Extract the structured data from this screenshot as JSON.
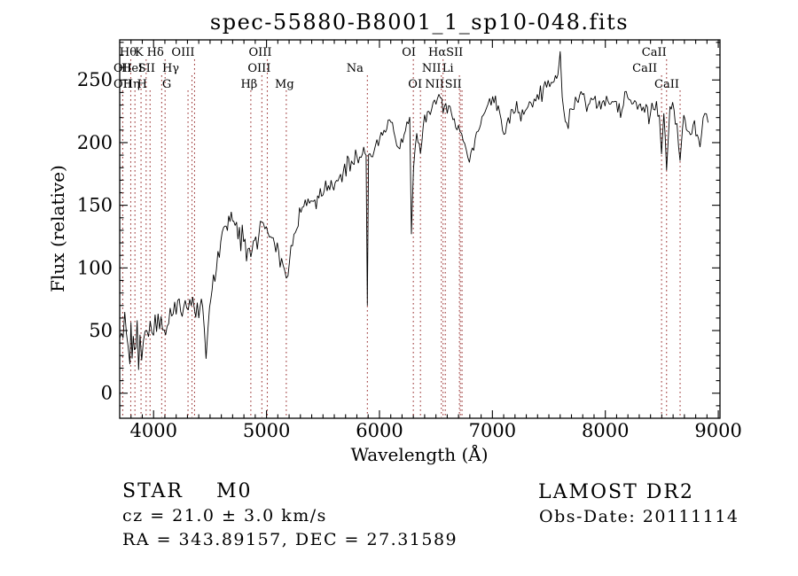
{
  "chart_data": {
    "type": "line",
    "title": "spec-55880-B8001_1_sp10-048.fits",
    "xlabel": "Wavelength (Å)",
    "ylabel": "Flux (relative)",
    "xlim": [
      3700,
      9015
    ],
    "ylim": [
      -20,
      282
    ],
    "xticks": [
      4000,
      5000,
      6000,
      7000,
      8000,
      9000
    ],
    "yticks": [
      0,
      50,
      100,
      150,
      200,
      250
    ],
    "x_minor_step": 100,
    "y_minor_step": 10,
    "grid": false,
    "legend": "none",
    "trace_color": "#000000",
    "feature_line_color": "#9e3a3a",
    "feature_labels": [
      {
        "text": "Hθ",
        "wavelength": 3798,
        "row": 1,
        "dx": -3
      },
      {
        "text": "K",
        "wavelength": 3934,
        "row": 1,
        "dx": -8
      },
      {
        "text": "Hδ",
        "wavelength": 4102,
        "row": 1,
        "dx": -11
      },
      {
        "text": "OIII",
        "wavelength": 4363,
        "row": 1,
        "dx": -13
      },
      {
        "text": "OIII",
        "wavelength": 5007,
        "row": 1,
        "dx": -8
      },
      {
        "text": "OI",
        "wavelength": 6300,
        "row": 1,
        "dx": -5
      },
      {
        "text": "HαSII",
        "wavelength": 6610,
        "row": 1,
        "dx": -3
      },
      {
        "text": "CaII",
        "wavelength": 8542,
        "row": 1,
        "dx": -14
      },
      {
        "text": "OII",
        "wavelength": 3727,
        "row": 2,
        "dx": 0
      },
      {
        "text": "HeI",
        "wavelength": 3889,
        "row": 2,
        "dx": -10
      },
      {
        "text": "SII",
        "wavelength": 4072,
        "row": 2,
        "dx": -17
      },
      {
        "text": "Hγ",
        "wavelength": 4340,
        "row": 2,
        "dx": -24
      },
      {
        "text": "OIII",
        "wavelength": 4959,
        "row": 2,
        "dx": -3
      },
      {
        "text": "Na",
        "wavelength": 5893,
        "row": 2,
        "dx": -14
      },
      {
        "text": "NII",
        "wavelength": 6548,
        "row": 2,
        "dx": -11
      },
      {
        "text": "Li",
        "wavelength": 6708,
        "row": 2,
        "dx": -13
      },
      {
        "text": "CaII",
        "wavelength": 8498,
        "row": 2,
        "dx": -19
      },
      {
        "text": "OII",
        "wavelength": 3727,
        "row": 3,
        "dx": 0
      },
      {
        "text": "Hη",
        "wavelength": 3835,
        "row": 3,
        "dx": -4
      },
      {
        "text": "H",
        "wavelength": 3969,
        "row": 3,
        "dx": -9
      },
      {
        "text": "G",
        "wavelength": 4305,
        "row": 3,
        "dx": -24
      },
      {
        "text": "Hβ",
        "wavelength": 4861,
        "row": 3,
        "dx": -2
      },
      {
        "text": "Mg",
        "wavelength": 5175,
        "row": 3,
        "dx": -2
      },
      {
        "text": "OI",
        "wavelength": 6363,
        "row": 3,
        "dx": -6
      },
      {
        "text": "NII",
        "wavelength": 6583,
        "row": 3,
        "dx": -12
      },
      {
        "text": "SII",
        "wavelength": 6716,
        "row": 3,
        "dx": -8
      },
      {
        "text": "CaII",
        "wavelength": 8662,
        "row": 3,
        "dx": -15
      }
    ],
    "feature_lines": [
      [
        3727,
        3
      ],
      [
        3798,
        1
      ],
      [
        3835,
        3
      ],
      [
        3889,
        2
      ],
      [
        3934,
        1
      ],
      [
        3969,
        3
      ],
      [
        4072,
        2
      ],
      [
        4102,
        1
      ],
      [
        4305,
        3
      ],
      [
        4340,
        2
      ],
      [
        4363,
        1
      ],
      [
        4861,
        3
      ],
      [
        4959,
        2
      ],
      [
        5007,
        1
      ],
      [
        5175,
        3
      ],
      [
        5893,
        2
      ],
      [
        6300,
        1
      ],
      [
        6363,
        3
      ],
      [
        6548,
        2
      ],
      [
        6563,
        1
      ],
      [
        6583,
        3
      ],
      [
        6708,
        2
      ],
      [
        6716,
        3
      ],
      [
        6731,
        3
      ],
      [
        8498,
        2
      ],
      [
        8542,
        1
      ],
      [
        8662,
        3
      ]
    ],
    "spectrum_anchors": [
      [
        3700,
        25,
        34
      ],
      [
        3715,
        45,
        34
      ],
      [
        3730,
        15,
        32
      ],
      [
        3745,
        40,
        30
      ],
      [
        3760,
        30,
        28
      ],
      [
        3775,
        42,
        26
      ],
      [
        3790,
        35,
        24
      ],
      [
        3810,
        42,
        22
      ],
      [
        3830,
        32,
        20
      ],
      [
        3855,
        38,
        18
      ],
      [
        3880,
        40,
        17
      ],
      [
        3910,
        44,
        16
      ],
      [
        3940,
        47,
        15
      ],
      [
        3970,
        50,
        14
      ],
      [
        4000,
        53,
        14
      ],
      [
        4040,
        56,
        13
      ],
      [
        4080,
        58,
        13
      ],
      [
        4120,
        61,
        12
      ],
      [
        4160,
        64,
        12
      ],
      [
        4200,
        68,
        12
      ],
      [
        4240,
        72,
        11
      ],
      [
        4280,
        70,
        11
      ],
      [
        4320,
        69,
        11
      ],
      [
        4360,
        73,
        10
      ],
      [
        4400,
        70,
        11
      ],
      [
        4435,
        66,
        11
      ],
      [
        4465,
        32,
        7
      ],
      [
        4495,
        68,
        10
      ],
      [
        4530,
        88,
        10
      ],
      [
        4570,
        110,
        10
      ],
      [
        4620,
        131,
        9
      ],
      [
        4665,
        142,
        9
      ],
      [
        4710,
        139,
        9
      ],
      [
        4760,
        129,
        9
      ],
      [
        4810,
        121,
        9
      ],
      [
        4861,
        113,
        8
      ],
      [
        4905,
        124,
        8
      ],
      [
        4945,
        131,
        8
      ],
      [
        4985,
        133,
        8
      ],
      [
        5025,
        128,
        8
      ],
      [
        5070,
        120,
        8
      ],
      [
        5120,
        110,
        7
      ],
      [
        5160,
        100,
        7
      ],
      [
        5190,
        96,
        6
      ],
      [
        5230,
        118,
        8
      ],
      [
        5280,
        139,
        8
      ],
      [
        5330,
        151,
        8
      ],
      [
        5380,
        156,
        9
      ],
      [
        5440,
        152,
        9
      ],
      [
        5500,
        160,
        9
      ],
      [
        5560,
        167,
        8
      ],
      [
        5620,
        171,
        8
      ],
      [
        5680,
        178,
        8
      ],
      [
        5740,
        184,
        8
      ],
      [
        5800,
        188,
        7
      ],
      [
        5850,
        191,
        6
      ],
      [
        5882,
        193,
        4
      ],
      [
        5893,
        72,
        3
      ],
      [
        5904,
        191,
        4
      ],
      [
        5940,
        194,
        7
      ],
      [
        5990,
        200,
        7
      ],
      [
        6040,
        208,
        7
      ],
      [
        6090,
        218,
        7
      ],
      [
        6140,
        206,
        7
      ],
      [
        6180,
        196,
        6
      ],
      [
        6230,
        211,
        6
      ],
      [
        6268,
        218,
        4
      ],
      [
        6283,
        128,
        4
      ],
      [
        6302,
        183,
        5
      ],
      [
        6330,
        209,
        5
      ],
      [
        6363,
        192,
        4
      ],
      [
        6400,
        220,
        5
      ],
      [
        6450,
        227,
        6
      ],
      [
        6500,
        234,
        6
      ],
      [
        6540,
        239,
        5
      ],
      [
        6563,
        223,
        4
      ],
      [
        6600,
        231,
        6
      ],
      [
        6650,
        221,
        6
      ],
      [
        6700,
        208,
        6
      ],
      [
        6755,
        197,
        6
      ],
      [
        6810,
        193,
        6
      ],
      [
        6860,
        207,
        6
      ],
      [
        6920,
        221,
        6
      ],
      [
        6975,
        232,
        6
      ],
      [
        7015,
        236,
        6
      ],
      [
        7065,
        220,
        6
      ],
      [
        7115,
        213,
        6
      ],
      [
        7165,
        224,
        6
      ],
      [
        7215,
        230,
        7
      ],
      [
        7265,
        226,
        7
      ],
      [
        7315,
        230,
        7
      ],
      [
        7370,
        235,
        7
      ],
      [
        7425,
        241,
        7
      ],
      [
        7480,
        246,
        6
      ],
      [
        7535,
        249,
        5
      ],
      [
        7580,
        254,
        4
      ],
      [
        7600,
        272,
        2
      ],
      [
        7618,
        237,
        3
      ],
      [
        7645,
        216,
        5
      ],
      [
        7685,
        222,
        6
      ],
      [
        7735,
        234,
        7
      ],
      [
        7785,
        238,
        7
      ],
      [
        7835,
        230,
        7
      ],
      [
        7885,
        237,
        7
      ],
      [
        7935,
        229,
        7
      ],
      [
        7985,
        236,
        7
      ],
      [
        8035,
        230,
        7
      ],
      [
        8085,
        235,
        7
      ],
      [
        8135,
        227,
        8
      ],
      [
        8185,
        237,
        8
      ],
      [
        8235,
        231,
        8
      ],
      [
        8285,
        234,
        8
      ],
      [
        8335,
        229,
        8
      ],
      [
        8385,
        228,
        8
      ],
      [
        8440,
        231,
        7
      ],
      [
        8478,
        223,
        5
      ],
      [
        8498,
        189,
        3
      ],
      [
        8518,
        227,
        4
      ],
      [
        8542,
        178,
        3
      ],
      [
        8572,
        231,
        5
      ],
      [
        8620,
        225,
        6
      ],
      [
        8662,
        183,
        3
      ],
      [
        8695,
        223,
        5
      ],
      [
        8740,
        206,
        7
      ],
      [
        8790,
        217,
        7
      ],
      [
        8838,
        203,
        7
      ],
      [
        8880,
        224,
        6
      ],
      [
        8910,
        216,
        4
      ]
    ]
  },
  "annotations": {
    "object_class": "STAR",
    "subclass": "M0",
    "cz": "cz = 21.0 ± 3.0 km/s",
    "radec": "RA = 343.89157, DEC = 27.31589",
    "survey": "LAMOST DR2",
    "obs_date": "Obs-Date: 20111114"
  }
}
